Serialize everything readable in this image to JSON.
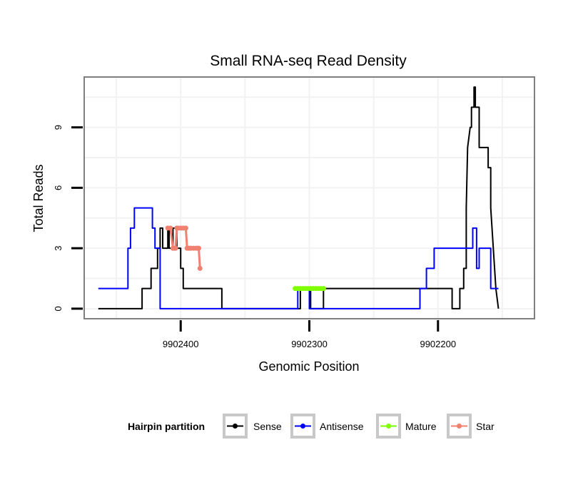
{
  "chart_data": {
    "type": "line",
    "title": "Small RNA-seq Read Density",
    "xlabel": "Genomic Position",
    "ylabel": "Total Reads",
    "x_reversed": true,
    "xlim": [
      9902475,
      9902125
    ],
    "ylim": [
      -0.5,
      11.5
    ],
    "x_ticks": [
      9902400,
      9902300,
      9902200
    ],
    "x_tick_labels": [
      "9902400",
      "9902300",
      "9902200"
    ],
    "y_ticks": [
      0,
      3,
      6,
      9
    ],
    "y_tick_labels": [
      "0",
      "3",
      "6",
      "9"
    ],
    "legend": {
      "title": "Hairpin partition",
      "position": "bottom",
      "entries": [
        {
          "label": "Sense",
          "color": "#000000"
        },
        {
          "label": "Antisense",
          "color": "#0000FF"
        },
        {
          "label": "Mature",
          "color": "#7FFF00"
        },
        {
          "label": "Star",
          "color": "#F08070"
        }
      ]
    },
    "series": [
      {
        "name": "Sense",
        "color": "#000000",
        "markers": false,
        "x": [
          9902464,
          9902430,
          9902430,
          9902423,
          9902423,
          9902418,
          9902418,
          9902416,
          9902416,
          9902414,
          9902414,
          9902410,
          9902410,
          9902409,
          9902409,
          9902406,
          9902406,
          9902403,
          9902403,
          9902400,
          9902400,
          9902398,
          9902398,
          9902368,
          9902368,
          9902307,
          9902307,
          9902299,
          9902299,
          9902289,
          9902289,
          9902189,
          9902189,
          9902183,
          9902183,
          9902180,
          9902180,
          9902178,
          9902178,
          9902177,
          9902175,
          9902174,
          9902174,
          9902172,
          9902172,
          9902171,
          9902171,
          9902168,
          9902168,
          9902161,
          9902161,
          9902159,
          9902159,
          9902157,
          9902155,
          9902153
        ],
        "y": [
          0,
          0,
          1,
          1,
          2,
          2,
          3,
          3,
          4,
          4,
          3,
          3,
          4,
          4,
          3,
          3,
          4,
          4,
          3,
          3,
          2,
          2,
          1,
          1,
          0,
          0,
          1,
          1,
          0,
          0,
          1,
          1,
          0,
          0,
          1,
          1,
          2,
          2,
          5,
          8,
          9,
          9,
          10,
          10,
          11,
          11,
          10,
          10,
          8,
          8,
          7,
          7,
          5,
          3,
          1,
          0
        ]
      },
      {
        "name": "Antisense",
        "color": "#0000FF",
        "markers": false,
        "x": [
          9902464,
          9902441,
          9902441,
          9902439,
          9902439,
          9902436,
          9902436,
          9902422,
          9902422,
          9902420,
          9902420,
          9902416,
          9902416,
          9902388,
          9902388,
          9902309,
          9902309,
          9902300,
          9902300,
          9902214,
          9902214,
          9902209,
          9902209,
          9902203,
          9902203,
          9902196,
          9902196,
          9902173,
          9902173,
          9902170,
          9902170,
          9902168,
          9902168,
          9902159,
          9902159,
          9902153
        ],
        "y": [
          1,
          1,
          3,
          3,
          4,
          4,
          5,
          5,
          4,
          4,
          3,
          3,
          0,
          0,
          0,
          0,
          1,
          1,
          0,
          0,
          1,
          1,
          2,
          2,
          3,
          3,
          3,
          3,
          4,
          4,
          2,
          2,
          3,
          3,
          1,
          1
        ]
      },
      {
        "name": "Mature",
        "color": "#7FFF00",
        "markers": true,
        "x": [
          9902311,
          9902309,
          9902307,
          9902305,
          9902303,
          9902301,
          9902299,
          9902297,
          9902295,
          9902293,
          9902291,
          9902289
        ],
        "y": [
          1,
          1,
          1,
          1,
          1,
          1,
          1,
          1,
          1,
          1,
          1,
          1
        ]
      },
      {
        "name": "Star",
        "color": "#F08070",
        "markers": true,
        "x": [
          9902410,
          9902408,
          9902406,
          9902405,
          9902404,
          9902403,
          9902402,
          9902400,
          9902398,
          9902396,
          9902395,
          9902394,
          9902393,
          9902392,
          9902390,
          9902388,
          9902387,
          9902386,
          9902385
        ],
        "y": [
          4,
          4,
          3,
          3,
          3,
          4,
          4,
          4,
          4,
          4,
          3,
          3,
          3,
          3,
          3,
          3,
          3,
          3,
          2
        ]
      }
    ]
  }
}
